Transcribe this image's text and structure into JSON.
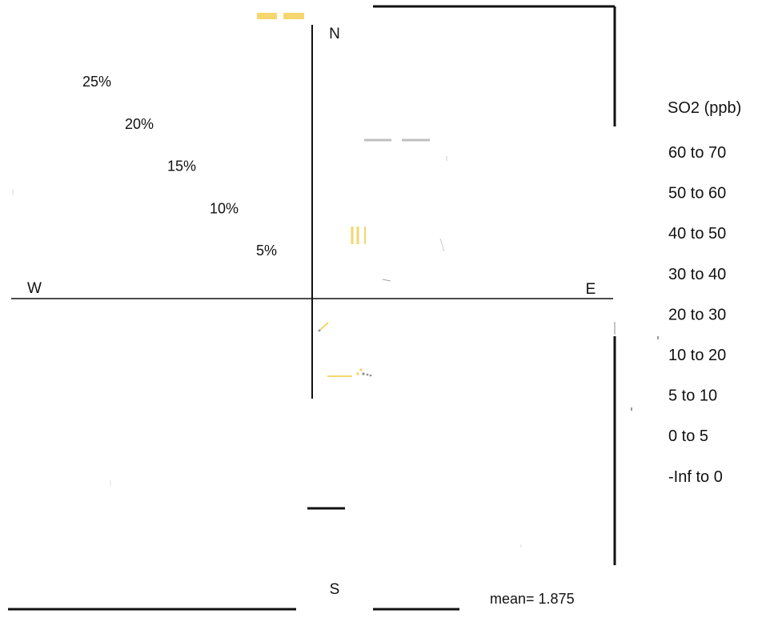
{
  "chart_data": {
    "type": "polar-rose",
    "title": "",
    "directions": {
      "north": "N",
      "south": "S",
      "west": "W",
      "east": "E"
    },
    "radial_ticks": [
      "5%",
      "10%",
      "15%",
      "20%",
      "25%"
    ],
    "radial_tick_values": [
      5,
      10,
      15,
      20,
      25
    ],
    "legend_title": "SO2 (ppb)",
    "legend_items": [
      "60 to 70",
      "50 to 60",
      "40 to 50",
      "30 to 40",
      "20 to 30",
      "10 to 20",
      "5 to 10",
      "0 to 5",
      "-Inf to 0"
    ],
    "mean_label": "mean= 1.875",
    "colors": {
      "axis": "#111111",
      "mean": "#2e8b22",
      "legend_frame": "#111111",
      "petal_light": "#f6d66e",
      "petal_grey": "#bfbfbf"
    }
  }
}
